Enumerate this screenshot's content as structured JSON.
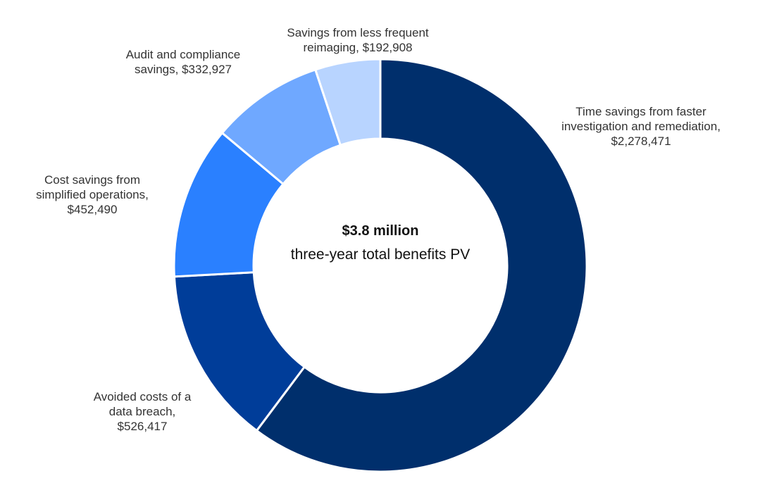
{
  "chart_data": {
    "type": "pie",
    "style": "donut",
    "center_value": "$3.8 million",
    "center_caption": "three-year total benefits PV",
    "slices": [
      {
        "label_lines": [
          "Time savings from faster",
          "investigation and remediation,",
          "$2,278,471"
        ],
        "value": 2278471,
        "color": "#002f6c"
      },
      {
        "label_lines": [
          "Avoided costs of a",
          "data breach,",
          "$526,417"
        ],
        "value": 526417,
        "color": "#003d99"
      },
      {
        "label_lines": [
          "Cost savings from",
          "simplified operations,",
          "$452,490"
        ],
        "value": 452490,
        "color": "#2a80ff"
      },
      {
        "label_lines": [
          "Audit and compliance",
          "savings, $332,927"
        ],
        "value": 332927,
        "color": "#6fa8ff"
      },
      {
        "label_lines": [
          "Savings from less frequent",
          "reimaging, $192,908"
        ],
        "value": 192908,
        "color": "#b8d4ff"
      }
    ]
  }
}
